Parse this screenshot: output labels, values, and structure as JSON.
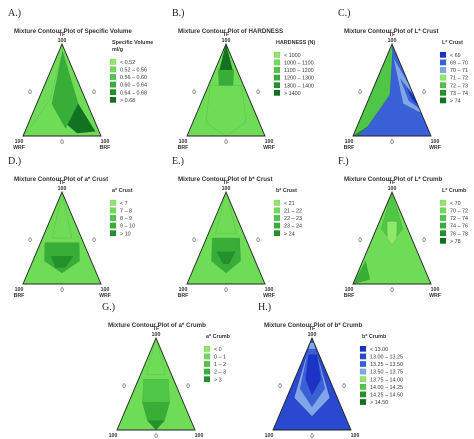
{
  "colors": {
    "light": "#8ee86a",
    "mid": "#5ccf4a",
    "green": "#3cb83a",
    "dark": "#1f8c2a",
    "darkest": "#0f6a1e",
    "blue_light": "#7ea6e8",
    "blue": "#3a60d8",
    "blue_dark": "#1c33c8",
    "edge": "#222222"
  },
  "chart_data": [
    {
      "type": "heatmap",
      "panel": "A.)",
      "title": "Mixture Contour Plot of Specific Volume",
      "vertices": {
        "top": "TF",
        "left": "WRF",
        "right": "BRF"
      },
      "vertex_value": "100",
      "zero_labels": [
        "0",
        "0",
        "0"
      ],
      "legend_title": [
        "Specific Volume",
        "ml/g"
      ],
      "legend": [
        {
          "label": "<  0.52",
          "color": "#8ee86a"
        },
        {
          "label": "0.52 – 0.56",
          "color": "#6fdc58"
        },
        {
          "label": "0.56 – 0.60",
          "color": "#50c646"
        },
        {
          "label": "0.60 – 0.64",
          "color": "#38ae38"
        },
        {
          "label": "0.64 – 0.68",
          "color": "#23922b"
        },
        {
          "label": ">  0.68",
          "color": "#117320"
        }
      ],
      "bands": [
        {
          "pts": [
            [
              0,
              1
            ],
            [
              0.6,
              0.92
            ],
            [
              0.25,
              0.4
            ],
            [
              0.08,
              0.15
            ],
            [
              0,
              0
            ]
          ],
          "color": "#6fdc58"
        },
        {
          "pts": [
            [
              0.6,
              0.92
            ],
            [
              0.82,
              0.35
            ],
            [
              0.55,
              0.08
            ],
            [
              0.3,
              0.35
            ]
          ],
          "color": "#38ae38"
        },
        {
          "pts": [
            [
              0.82,
              0.35
            ],
            [
              0.95,
              0.05
            ],
            [
              0.7,
              0.03
            ],
            [
              0.58,
              0.12
            ]
          ],
          "color": "#117320"
        }
      ]
    },
    {
      "type": "heatmap",
      "panel": "B.)",
      "title": "Mixture Contour Plot of HARDNESS",
      "vertices": {
        "top": "TF",
        "left": "BRF",
        "right": "WRF"
      },
      "vertex_value": "100",
      "zero_labels": [
        "0",
        "0",
        "0"
      ],
      "legend_title": [
        "HARDNESS (N)"
      ],
      "legend": [
        {
          "label": "<  1000",
          "color": "#8ee86a"
        },
        {
          "label": "1000 – 1100",
          "color": "#6fdc58"
        },
        {
          "label": "1100 – 1200",
          "color": "#50c646"
        },
        {
          "label": "1200 – 1300",
          "color": "#38ae38"
        },
        {
          "label": "1300 – 1400",
          "color": "#23922b"
        },
        {
          "label": ">  1400",
          "color": "#117320"
        }
      ],
      "bands": [
        {
          "pts": [
            [
              0.05,
              0.55
            ],
            [
              0.95,
              0.55
            ],
            [
              0.8,
              0.15
            ],
            [
              0.5,
              0.0
            ],
            [
              0.2,
              0.15
            ]
          ],
          "color": "#6fdc58"
        },
        {
          "pts": [
            [
              0.15,
              0.72
            ],
            [
              0.85,
              0.72
            ],
            [
              0.7,
              0.55
            ],
            [
              0.3,
              0.55
            ]
          ],
          "color": "#38ae38"
        },
        {
          "pts": [
            [
              0,
              1
            ],
            [
              1,
              1
            ],
            [
              0.8,
              0.72
            ],
            [
              0.2,
              0.72
            ]
          ],
          "color": "#117320"
        }
      ]
    },
    {
      "type": "heatmap",
      "panel": "C.)",
      "title": "Mixture Contour Plot of L* Crust",
      "vertices": {
        "top": "TF",
        "left": "BRF",
        "right": "WRF"
      },
      "vertex_value": "100",
      "zero_labels": [
        "0",
        "0",
        "0"
      ],
      "legend_title": [
        "L* Crust"
      ],
      "legend": [
        {
          "label": "<  69",
          "color": "#1c33c8"
        },
        {
          "label": "69 – 70",
          "color": "#3a60d8"
        },
        {
          "label": "70 – 71",
          "color": "#7ea6e8"
        },
        {
          "label": "71 – 72",
          "color": "#8ee86a"
        },
        {
          "label": "72 – 73",
          "color": "#50c646"
        },
        {
          "label": "73 – 74",
          "color": "#23922b"
        },
        {
          "label": ">  74",
          "color": "#117320"
        }
      ],
      "bands": [
        {
          "pts": [
            [
              0,
              1
            ],
            [
              0.55,
              0.9
            ],
            [
              0.45,
              0.45
            ],
            [
              0.15,
              0.1
            ],
            [
              0,
              0
            ]
          ],
          "color": "#50c646"
        },
        {
          "pts": [
            [
              0,
              0
            ],
            [
              0.15,
              0.1
            ],
            [
              0.05,
              0.0
            ]
          ],
          "color": "#23922b"
        },
        {
          "pts": [
            [
              0.62,
              0.85
            ],
            [
              1,
              0.55
            ],
            [
              1,
              0.25
            ],
            [
              0.72,
              0.35
            ]
          ],
          "color": "#7ea6e8"
        },
        {
          "pts": [
            [
              0.78,
              0.62
            ],
            [
              1,
              0.45
            ],
            [
              1,
              0.3
            ],
            [
              0.85,
              0.38
            ]
          ],
          "color": "#3a60d8"
        },
        {
          "pts": [
            [
              0.9,
              0.52
            ],
            [
              1,
              0.42
            ],
            [
              1,
              0.33
            ],
            [
              0.93,
              0.4
            ]
          ],
          "color": "#1c33c8"
        }
      ]
    },
    {
      "type": "heatmap",
      "panel": "D.)",
      "title": "Mixture Contour Plot of a* Crust",
      "vertices": {
        "top": "TF",
        "left": "BRF",
        "right": "WRF"
      },
      "vertex_value": "100",
      "zero_labels": [
        "0",
        "0",
        "0"
      ],
      "legend_title": [
        "a* Crust"
      ],
      "legend": [
        {
          "label": "<  7",
          "color": "#8ee86a"
        },
        {
          "label": "7 – 8",
          "color": "#6fdc58"
        },
        {
          "label": "8 – 9",
          "color": "#50c646"
        },
        {
          "label": "9 – 10",
          "color": "#38ae38"
        },
        {
          "label": ">  10",
          "color": "#23922b"
        }
      ],
      "bands": [
        {
          "pts": [
            [
              0,
              1
            ],
            [
              1,
              1
            ],
            [
              0.75,
              0.5
            ],
            [
              0.25,
              0.5
            ]
          ],
          "color": "#6fdc58"
        },
        {
          "pts": [
            [
              0.1,
              0.45
            ],
            [
              0.9,
              0.45
            ],
            [
              0.8,
              0.25
            ],
            [
              0.5,
              0.12
            ],
            [
              0.2,
              0.25
            ]
          ],
          "color": "#38ae38"
        },
        {
          "pts": [
            [
              0.3,
              0.3
            ],
            [
              0.7,
              0.3
            ],
            [
              0.55,
              0.18
            ],
            [
              0.4,
              0.18
            ]
          ],
          "color": "#23922b"
        }
      ]
    },
    {
      "type": "heatmap",
      "panel": "E.)",
      "title": "Mixture Contour Plot of b* Crust",
      "vertices": {
        "top": "TF",
        "left": "BRF",
        "right": "WRF"
      },
      "vertex_value": "100",
      "zero_labels": [
        "0",
        "0",
        "0"
      ],
      "legend_title": [
        "b* Crust"
      ],
      "legend": [
        {
          "label": "<  21",
          "color": "#8ee86a"
        },
        {
          "label": "21 – 22",
          "color": "#6fdc58"
        },
        {
          "label": "22 – 23",
          "color": "#50c646"
        },
        {
          "label": "23 – 24",
          "color": "#38ae38"
        },
        {
          "label": ">  24",
          "color": "#23922b"
        }
      ],
      "bands": [
        {
          "pts": [
            [
              0,
              1
            ],
            [
              1,
              1
            ],
            [
              0.8,
              0.55
            ],
            [
              0.2,
              0.55
            ]
          ],
          "color": "#6fdc58"
        },
        {
          "pts": [
            [
              0.15,
              0.5
            ],
            [
              0.85,
              0.5
            ],
            [
              0.75,
              0.25
            ],
            [
              0.5,
              0.12
            ],
            [
              0.25,
              0.25
            ]
          ],
          "color": "#38ae38"
        },
        {
          "pts": [
            [
              0.32,
              0.35
            ],
            [
              0.68,
              0.35
            ],
            [
              0.55,
              0.22
            ],
            [
              0.45,
              0.22
            ]
          ],
          "color": "#23922b"
        }
      ]
    },
    {
      "type": "heatmap",
      "panel": "F.)",
      "title": "Mixture Contour Plot of L* Crumb",
      "vertices": {
        "top": "TF",
        "left": "BRF",
        "right": "WRF"
      },
      "vertex_value": "100",
      "zero_labels": [
        "0",
        "0",
        "0"
      ],
      "legend_title": [
        "L* Crumb"
      ],
      "legend": [
        {
          "label": "<  70",
          "color": "#8ee86a"
        },
        {
          "label": "70 – 72",
          "color": "#6fdc58"
        },
        {
          "label": "72 – 74",
          "color": "#50c646"
        },
        {
          "label": "74 – 76",
          "color": "#38ae38"
        },
        {
          "label": "76 – 78",
          "color": "#23922b"
        },
        {
          "label": ">  78",
          "color": "#117320"
        }
      ],
      "bands": [
        {
          "pts": [
            [
              0,
              1
            ],
            [
              1,
              1
            ],
            [
              0.85,
              0.6
            ],
            [
              0.5,
              0.45
            ],
            [
              0.15,
              0.6
            ]
          ],
          "color": "#50c646"
        },
        {
          "pts": [
            [
              0.3,
              0.68
            ],
            [
              0.7,
              0.68
            ],
            [
              0.62,
              0.5
            ],
            [
              0.5,
              0.42
            ],
            [
              0.38,
              0.5
            ]
          ],
          "color": "#8ee86a"
        },
        {
          "pts": [
            [
              0,
              0
            ],
            [
              0.2,
              0.05
            ],
            [
              0.05,
              0.25
            ]
          ],
          "color": "#38ae38"
        },
        {
          "pts": [
            [
              0,
              0.7
            ],
            [
              0.08,
              0.9
            ],
            [
              0,
              1
            ]
          ],
          "color": "#23922b"
        }
      ]
    },
    {
      "type": "heatmap",
      "panel": "G.)",
      "title": "Mixture Contour Plot of a* Crumb",
      "vertices": {
        "top": "TF",
        "left": "BRF",
        "right": "WRF"
      },
      "vertex_value": "100",
      "zero_labels": [
        "0",
        "0",
        "0"
      ],
      "legend_title": [
        "a* Crumb"
      ],
      "legend": [
        {
          "label": "<  0",
          "color": "#8ee86a"
        },
        {
          "label": "0 – 1",
          "color": "#6fdc58"
        },
        {
          "label": "1 – 2",
          "color": "#50c646"
        },
        {
          "label": "2 – 3",
          "color": "#38ae38"
        },
        {
          "label": ">  3",
          "color": "#23922b"
        }
      ],
      "bands": [
        {
          "pts": [
            [
              0,
              1
            ],
            [
              1,
              1
            ],
            [
              0.8,
              0.6
            ],
            [
              0.2,
              0.6
            ]
          ],
          "color": "#6fdc58"
        },
        {
          "pts": [
            [
              0.15,
              0.55
            ],
            [
              0.85,
              0.55
            ],
            [
              0.75,
              0.3
            ],
            [
              0.25,
              0.3
            ]
          ],
          "color": "#50c646"
        },
        {
          "pts": [
            [
              0.25,
              0.3
            ],
            [
              0.75,
              0.3
            ],
            [
              0.62,
              0.1
            ],
            [
              0.38,
              0.1
            ]
          ],
          "color": "#38ae38"
        },
        {
          "pts": [
            [
              0.38,
              0.1
            ],
            [
              0.62,
              0.1
            ],
            [
              0.5,
              0.0
            ]
          ],
          "color": "#23922b"
        }
      ]
    },
    {
      "type": "heatmap",
      "panel": "H.)",
      "title": "Mixture Contour Plot of b* Crumb",
      "vertices": {
        "top": "TF",
        "left": "BRF",
        "right": "WRF"
      },
      "vertex_value": "100",
      "zero_labels": [
        "0",
        "0",
        "0"
      ],
      "legend_title": [
        "b* Crumb"
      ],
      "legend": [
        {
          "label": "<  13.00",
          "color": "#1c33c8"
        },
        {
          "label": "13.00 – 13.25",
          "color": "#2a48d0"
        },
        {
          "label": "13.25 – 13.50",
          "color": "#3a60d8"
        },
        {
          "label": "13.50 – 13.75",
          "color": "#7ea6e8"
        },
        {
          "label": "13.75 – 14.00",
          "color": "#8ee86a"
        },
        {
          "label": "14.00 – 14.25",
          "color": "#50c646"
        },
        {
          "label": "14.25 – 14.50",
          "color": "#23922b"
        },
        {
          "label": ">  14.50",
          "color": "#117320"
        }
      ],
      "bands": [
        {
          "pts": [
            [
              0.05,
              0.95
            ],
            [
              0.95,
              0.95
            ],
            [
              0.85,
              0.35
            ],
            [
              0.5,
              0.15
            ],
            [
              0.15,
              0.35
            ]
          ],
          "color": "#7ea6e8"
        },
        {
          "pts": [
            [
              0.12,
              0.88
            ],
            [
              0.9,
              0.88
            ],
            [
              0.8,
              0.45
            ],
            [
              0.5,
              0.25
            ],
            [
              0.22,
              0.45
            ]
          ],
          "color": "#3a60d8"
        },
        {
          "pts": [
            [
              0.25,
              0.82
            ],
            [
              0.85,
              0.82
            ],
            [
              0.75,
              0.55
            ],
            [
              0.5,
              0.38
            ],
            [
              0.32,
              0.55
            ]
          ],
          "color": "#1c33c8"
        },
        {
          "pts": [
            [
              0,
              1
            ],
            [
              0.12,
              0.98
            ],
            [
              0.03,
              0.85
            ]
          ],
          "color": "#23922b"
        }
      ]
    }
  ]
}
